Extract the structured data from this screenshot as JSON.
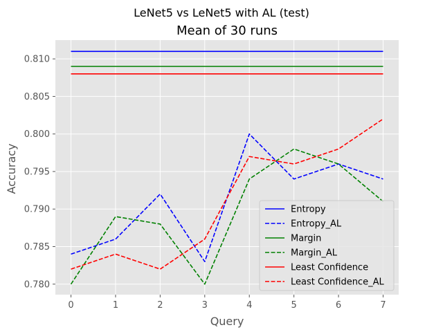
{
  "chart_data": {
    "type": "line",
    "suptitle": "LeNet5 vs LeNet5 with AL (test)",
    "title": "Mean of 30 runs",
    "xlabel": "Query",
    "ylabel": "Accuracy",
    "x": [
      0,
      1,
      2,
      3,
      4,
      5,
      6,
      7
    ],
    "xlim": [
      -0.35,
      7.35
    ],
    "ylim": [
      0.7786,
      0.8125
    ],
    "xticks": [
      "0",
      "1",
      "2",
      "3",
      "4",
      "5",
      "6",
      "7"
    ],
    "yticks": [
      0.78,
      0.785,
      0.79,
      0.795,
      0.8,
      0.805,
      0.81
    ],
    "ytick_labels": [
      "0.780",
      "0.785",
      "0.790",
      "0.795",
      "0.800",
      "0.805",
      "0.810"
    ],
    "grid": true,
    "legend_position": "bottom-right",
    "series": [
      {
        "name": "Entropy",
        "color": "#0000ff",
        "dashed": false,
        "values": [
          0.811,
          0.811,
          0.811,
          0.811,
          0.811,
          0.811,
          0.811,
          0.811
        ]
      },
      {
        "name": "Entropy_AL",
        "color": "#0000ff",
        "dashed": true,
        "values": [
          0.784,
          0.786,
          0.792,
          0.783,
          0.8,
          0.794,
          0.796,
          0.794
        ]
      },
      {
        "name": "Margin",
        "color": "#008000",
        "dashed": false,
        "values": [
          0.809,
          0.809,
          0.809,
          0.809,
          0.809,
          0.809,
          0.809,
          0.809
        ]
      },
      {
        "name": "Margin_AL",
        "color": "#008000",
        "dashed": true,
        "values": [
          0.78,
          0.789,
          0.788,
          0.78,
          0.794,
          0.798,
          0.796,
          0.791
        ]
      },
      {
        "name": "Least Confidence",
        "color": "#ff0000",
        "dashed": false,
        "values": [
          0.808,
          0.808,
          0.808,
          0.808,
          0.808,
          0.808,
          0.808,
          0.808
        ]
      },
      {
        "name": "Least Confidence_AL",
        "color": "#ff0000",
        "dashed": true,
        "values": [
          0.782,
          0.784,
          0.782,
          0.786,
          0.797,
          0.796,
          0.798,
          0.802
        ]
      }
    ]
  }
}
